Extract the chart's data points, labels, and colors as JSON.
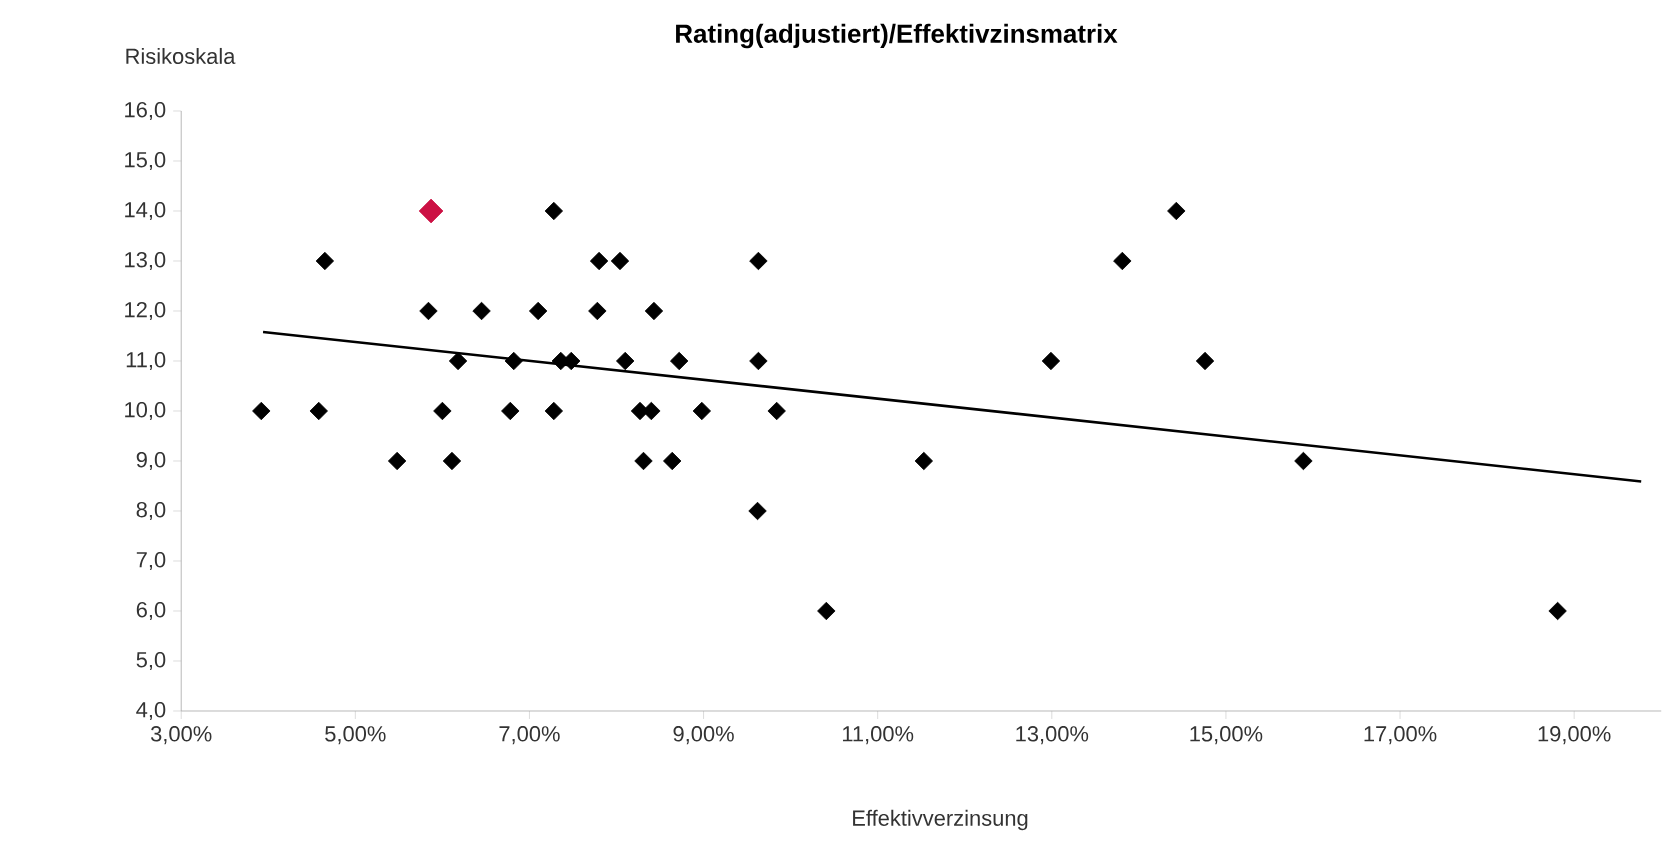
{
  "chart_data": {
    "type": "scatter",
    "title": "Rating(adjustiert)/Effektivzinsmatrix",
    "xlabel": "Effektivverzinsung",
    "ylabel": "Risikoskala",
    "marker": "diamond",
    "grid": false,
    "xlim": [
      3,
      20
    ],
    "ylim": [
      4,
      16
    ],
    "xticks": [
      {
        "value": 3,
        "label": "3,00%"
      },
      {
        "value": 5,
        "label": "5,00%"
      },
      {
        "value": 7,
        "label": "7,00%"
      },
      {
        "value": 9,
        "label": "9,00%"
      },
      {
        "value": 11,
        "label": "11,00%"
      },
      {
        "value": 13,
        "label": "13,00%"
      },
      {
        "value": 15,
        "label": "15,00%"
      },
      {
        "value": 17,
        "label": "17,00%"
      },
      {
        "value": 19,
        "label": "19,00%"
      }
    ],
    "yticks": [
      {
        "value": 4,
        "label": "4,0"
      },
      {
        "value": 5,
        "label": "5,0"
      },
      {
        "value": 6,
        "label": "6,0"
      },
      {
        "value": 7,
        "label": "7,0"
      },
      {
        "value": 8,
        "label": "8,0"
      },
      {
        "value": 9,
        "label": "9,0"
      },
      {
        "value": 10,
        "label": "10,0"
      },
      {
        "value": 11,
        "label": "11,0"
      },
      {
        "value": 12,
        "label": "12,0"
      },
      {
        "value": 13,
        "label": "13,0"
      },
      {
        "value": 14,
        "label": "14,0"
      },
      {
        "value": 15,
        "label": "15,0"
      },
      {
        "value": 16,
        "label": "16,0"
      }
    ],
    "series": [
      {
        "color": "#000000",
        "x": [
          3.92,
          4.58,
          4.65,
          5.48,
          5.84,
          6.0,
          6.11,
          6.18,
          6.45,
          6.78,
          6.82,
          7.1,
          7.28,
          7.28,
          7.36,
          7.48,
          7.78,
          7.8,
          8.04,
          8.1,
          8.27,
          8.31,
          8.4,
          8.43,
          8.64,
          8.72,
          8.98,
          9.63,
          9.63,
          9.84,
          9.62,
          10.41,
          11.53,
          12.99,
          13.81,
          14.43,
          14.76,
          15.89,
          18.81
        ],
        "values": [
          10,
          10,
          13,
          9,
          12,
          10,
          9,
          11,
          12,
          10,
          11,
          12,
          14,
          10,
          11,
          11,
          12,
          13,
          13,
          11,
          10,
          9,
          10,
          12,
          9,
          11,
          10,
          13,
          11,
          10,
          8,
          6,
          9,
          11,
          13,
          14,
          11,
          9,
          6
        ]
      },
      {
        "type": "scatter",
        "color": "#cc1144",
        "x": [
          5.87
        ],
        "values": [
          14
        ]
      },
      {
        "type": "line",
        "color": "#000000",
        "line_style": "solid",
        "marker": "none",
        "x": [
          3.94,
          19.77
        ],
        "values": [
          11.58,
          8.59
        ]
      }
    ]
  }
}
